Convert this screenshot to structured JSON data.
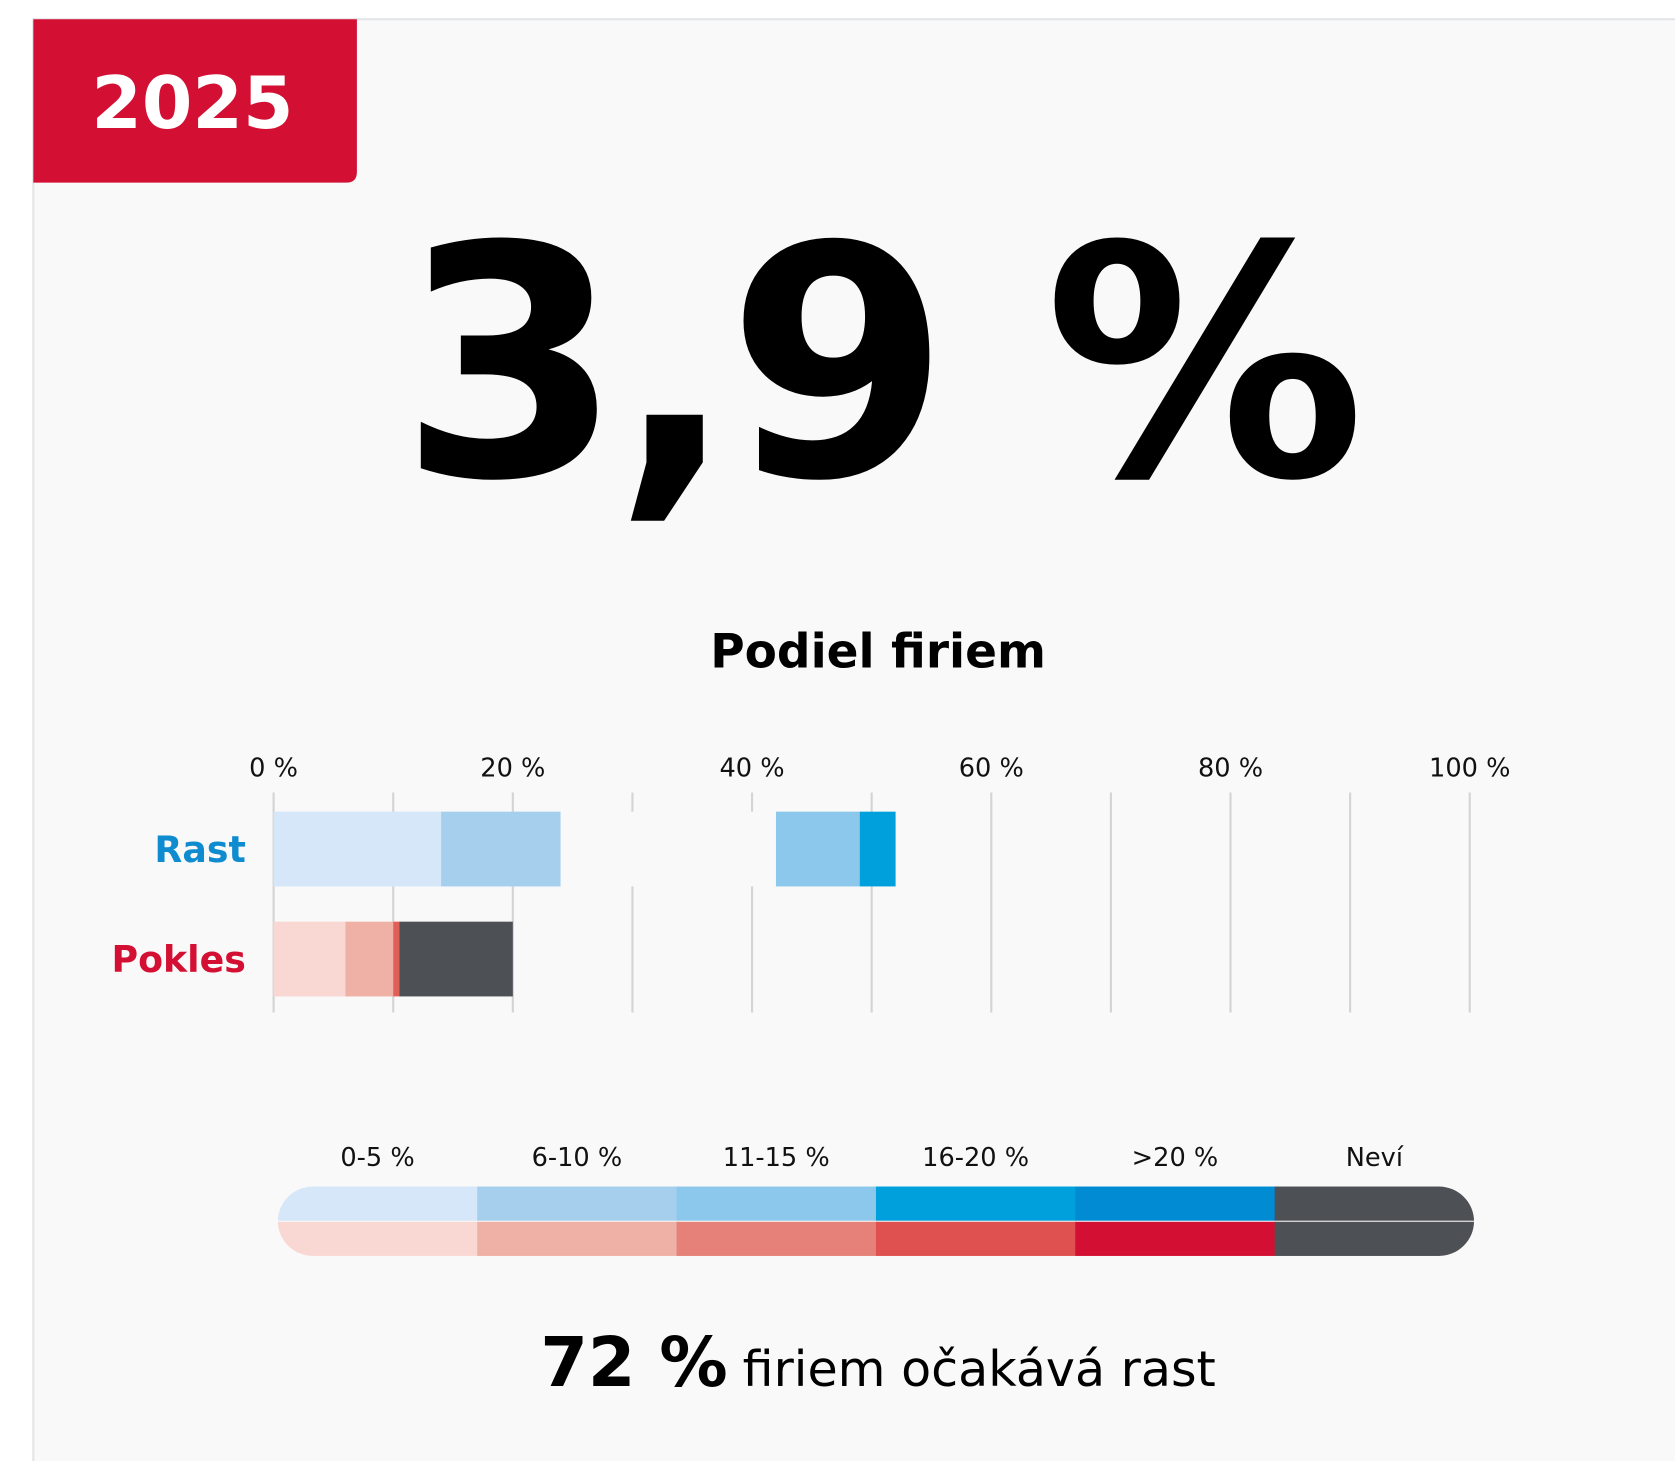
{
  "header": {
    "year": "2025"
  },
  "headline": {
    "value": "3,9 %"
  },
  "chart_data": {
    "type": "stacked-bar-horizontal",
    "title": "Podiel firiem",
    "categories": [
      "Rast",
      "Pokles"
    ],
    "category_colors": [
      "#0f8bd0",
      "#d31033"
    ],
    "rows": [
      {
        "values": [
          14,
          10,
          18,
          7,
          3
        ],
        "colors": [
          "#d5e7f8",
          "#a6cfee",
          "#f8f9f8",
          "#8cc8ec",
          "#00a0dc"
        ]
      },
      {
        "values": [
          6,
          4,
          0.5,
          9.5
        ],
        "colors": [
          "#f9d8d3",
          "#efb0a6",
          "#e06058",
          "#4d5055"
        ]
      }
    ],
    "xlim": [
      0,
      100
    ],
    "xticks": [
      {
        "value": 0,
        "label": "0 %"
      },
      {
        "value": 20,
        "label": "20 %"
      },
      {
        "value": 40,
        "label": "40 %"
      },
      {
        "value": 60,
        "label": "60 %"
      },
      {
        "value": 80,
        "label": "80 %"
      },
      {
        "value": 100,
        "label": "100 %"
      }
    ],
    "minor_xticks": [
      10,
      30,
      50,
      70,
      90
    ],
    "grid": true,
    "legend": {
      "labels": [
        "0-5 %",
        "6-10 %",
        "11-15 %",
        "16-20 %",
        ">20 %",
        "Neví"
      ],
      "growth_colors": [
        "#d5e7f8",
        "#a6cfee",
        "#8cc8ec",
        "#00a0dc",
        "#008bd2",
        "#4d5055"
      ],
      "decline_colors": [
        "#f9d8d3",
        "#efb0a6",
        "#e58179",
        "#df5050",
        "#d31033",
        "#4d5055"
      ]
    }
  },
  "footer": {
    "value": "72 %",
    "text": "firiem očakává rast"
  }
}
